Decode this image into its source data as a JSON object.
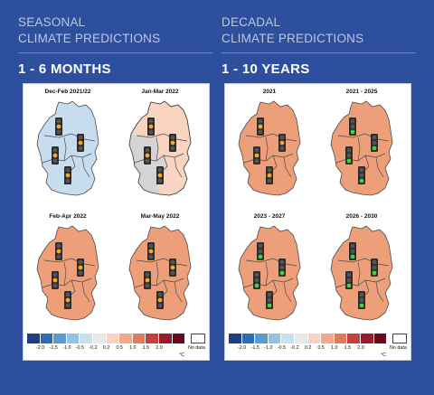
{
  "seasonal": {
    "line1": "SEASONAL",
    "line2": "CLIMATE PREDICTIONS",
    "range": "1 - 6 MONTHS",
    "maps": [
      {
        "title": "Dec-Feb 2021/22",
        "fill": "#c8dcef",
        "lights": [
          "amber",
          "amber",
          "amber",
          "amber"
        ]
      },
      {
        "title": "Jan-Mar 2022",
        "fill": "#f9d4c0",
        "lights": [
          "amber",
          "amber",
          "amber",
          "amber"
        ]
      },
      {
        "title": "Feb-Apr 2022",
        "fill": "#ec9f78",
        "lights": [
          "amber",
          "amber",
          "amber",
          "amber"
        ]
      },
      {
        "title": "Mar-May 2022",
        "fill": "#ec9f78",
        "lights": [
          "amber",
          "amber",
          "amber",
          "amber"
        ]
      }
    ]
  },
  "decadal": {
    "line1": "DECADAL",
    "line2": "CLIMATE PREDICTIONS",
    "range": "1 - 10 YEARS",
    "maps": [
      {
        "title": "2021",
        "fill": "#ec9f78",
        "lights": [
          "amber",
          "amber",
          "amber",
          "amber"
        ]
      },
      {
        "title": "2021 - 2025",
        "fill": "#ec9f78",
        "lights": [
          "green",
          "green",
          "green",
          "green"
        ]
      },
      {
        "title": "2023 - 2027",
        "fill": "#ec9f78",
        "lights": [
          "green",
          "green",
          "green",
          "green"
        ]
      },
      {
        "title": "2026 - 2030",
        "fill": "#ec9f78",
        "lights": [
          "green",
          "green",
          "green",
          "green"
        ]
      }
    ]
  },
  "legend": {
    "colors": [
      "#1c3f86",
      "#2e6db4",
      "#5c9bd0",
      "#93c2e3",
      "#c9e0ef",
      "#e8e8e8",
      "#f8d3bf",
      "#f2a98a",
      "#e07a5c",
      "#c4413a",
      "#9a1c2a",
      "#6b0a1a"
    ],
    "ticks": [
      "-2.0",
      "-1.5",
      "-1.0",
      "-0.5",
      "-0.2",
      "0.2",
      "0.5",
      "1.0",
      "1.5",
      "2.0"
    ],
    "unit": "°C",
    "no_data": "No data"
  },
  "light_colors": {
    "amber": "#f5a623",
    "green": "#3fd23f",
    "housing": "#2b2b2b"
  }
}
